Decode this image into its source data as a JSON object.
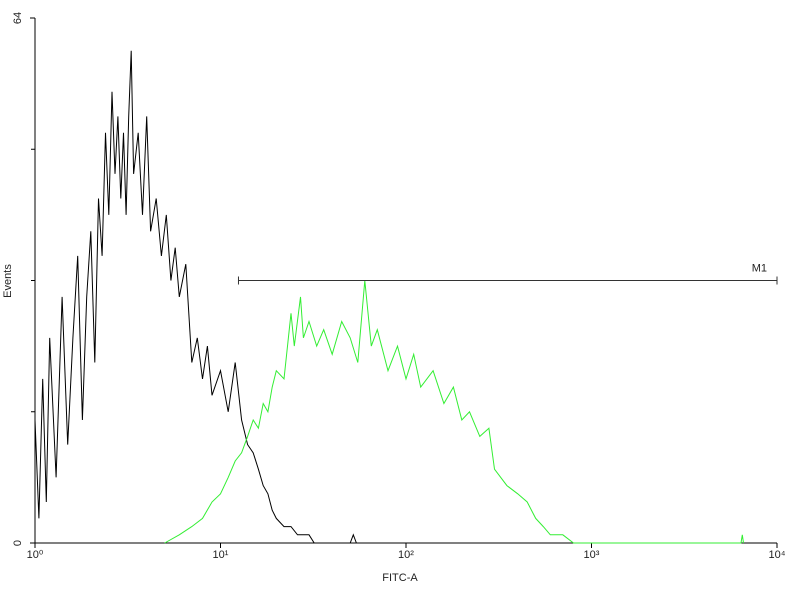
{
  "chart_data": {
    "type": "line",
    "xlabel": "FITC-A",
    "ylabel": "Events",
    "xscale": "log",
    "xlim": [
      1,
      10000
    ],
    "xticks": [
      {
        "value": 1,
        "label": "10⁰"
      },
      {
        "value": 10,
        "label": "10¹"
      },
      {
        "value": 100,
        "label": "10²"
      },
      {
        "value": 1000,
        "label": "10³"
      },
      {
        "value": 10000,
        "label": "10⁴"
      }
    ],
    "ylim": [
      0,
      64
    ],
    "yticks": [
      0,
      64
    ],
    "yminorticks": [
      16,
      32,
      48
    ],
    "marker": {
      "label": "M1",
      "x": [
        12.5,
        10000
      ],
      "y": 32
    },
    "series": [
      {
        "color": "#000000",
        "x": [
          1.0,
          1.05,
          1.1,
          1.15,
          1.2,
          1.3,
          1.4,
          1.5,
          1.6,
          1.7,
          1.8,
          1.9,
          2.0,
          2.1,
          2.2,
          2.3,
          2.4,
          2.5,
          2.6,
          2.7,
          2.8,
          2.9,
          3.0,
          3.1,
          3.2,
          3.3,
          3.4,
          3.6,
          3.8,
          4.0,
          4.2,
          4.5,
          4.8,
          5.1,
          5.4,
          5.7,
          6.0,
          6.5,
          7.0,
          7.5,
          8.0,
          8.5,
          9.0,
          10,
          11,
          12,
          13,
          14,
          15,
          16,
          17,
          18,
          19,
          20,
          22,
          24,
          26,
          28,
          30,
          32,
          35,
          50,
          52,
          54
        ],
        "values": [
          15,
          3,
          20,
          5,
          25,
          8,
          30,
          12,
          25,
          35,
          15,
          30,
          38,
          22,
          42,
          35,
          50,
          40,
          55,
          45,
          52,
          42,
          50,
          40,
          52,
          60,
          45,
          50,
          40,
          52,
          38,
          42,
          35,
          40,
          32,
          36,
          30,
          34,
          22,
          25,
          20,
          24,
          18,
          21,
          16,
          22,
          15,
          12,
          11,
          9,
          7,
          6,
          4,
          3,
          2,
          2,
          1,
          1,
          1,
          0,
          0,
          0,
          1,
          0
        ]
      },
      {
        "color": "#33ee33",
        "x": [
          5,
          6,
          7,
          8,
          9,
          10,
          11,
          12,
          13,
          14,
          15,
          16,
          17,
          18,
          19,
          20,
          22,
          24,
          25,
          27,
          28,
          30,
          33,
          36,
          40,
          45,
          50,
          55,
          60,
          65,
          70,
          80,
          90,
          100,
          110,
          120,
          140,
          160,
          180,
          200,
          220,
          250,
          280,
          300,
          350,
          400,
          450,
          500,
          550,
          600,
          700,
          800,
          6400,
          6500,
          6600
        ],
        "values": [
          0,
          1,
          2,
          3,
          5,
          6,
          8,
          10,
          11,
          13,
          15,
          14,
          17,
          16,
          19,
          21,
          20,
          28,
          24,
          30,
          25,
          27,
          24,
          26,
          23,
          27,
          25,
          22,
          32,
          24,
          26,
          21,
          24,
          20,
          23,
          19,
          21,
          17,
          19,
          15,
          16,
          13,
          14,
          9,
          7,
          6,
          5,
          3,
          2,
          1,
          1,
          0,
          0,
          1,
          0
        ]
      }
    ]
  }
}
